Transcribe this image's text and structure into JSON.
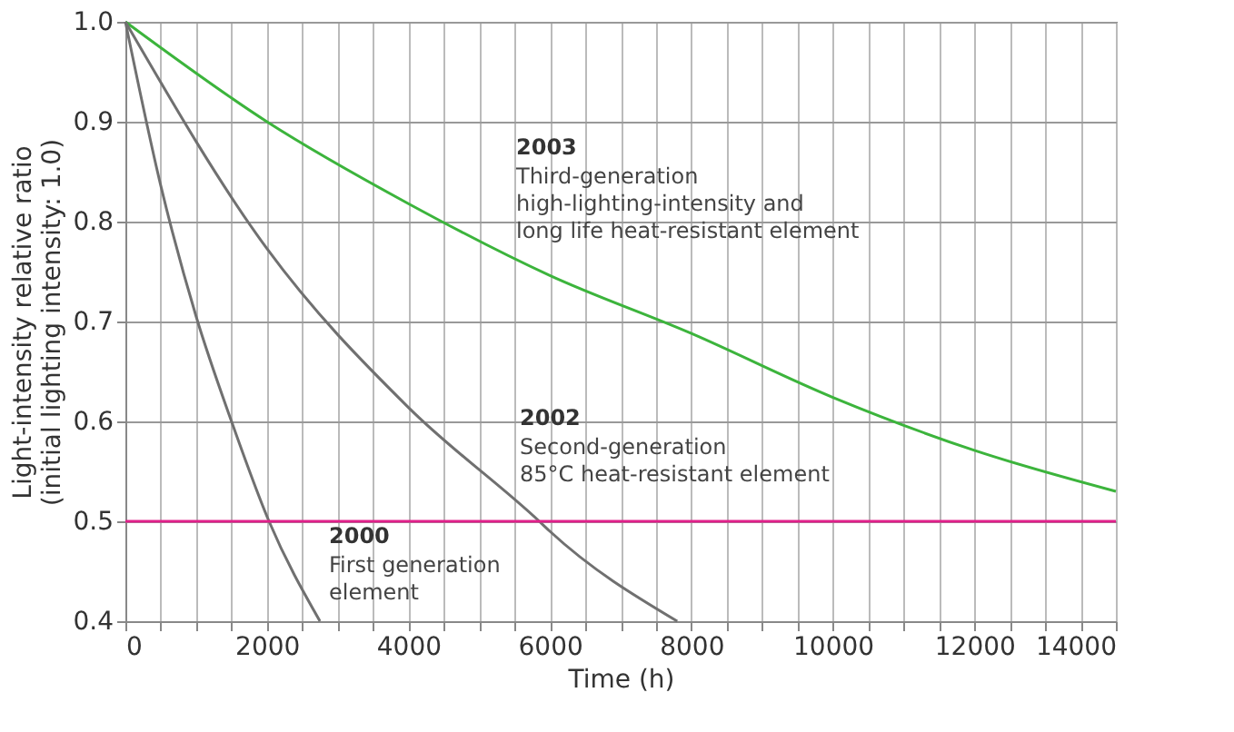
{
  "chart_data": {
    "type": "line",
    "xlabel": "Time (h)",
    "ylabel": "Light-intensity relative ratio\n(initial lighting intensity: 1.0)",
    "xlim": [
      0,
      14000
    ],
    "ylim": [
      0.4,
      1.0
    ],
    "xticks": [
      0,
      {
        "value": 500,
        "label": null
      },
      {
        "value": 1000,
        "label": null
      },
      {
        "value": 1500,
        "label": null
      },
      2000,
      {
        "value": 2500,
        "label": null
      },
      {
        "value": 3000,
        "label": null
      },
      {
        "value": 3500,
        "label": null
      },
      4000,
      {
        "value": 4500,
        "label": null
      },
      {
        "value": 5000,
        "label": null
      },
      {
        "value": 5500,
        "label": null
      },
      6000,
      {
        "value": 6500,
        "label": null
      },
      {
        "value": 7000,
        "label": null
      },
      {
        "value": 7500,
        "label": null
      },
      8000,
      {
        "value": 8500,
        "label": null
      },
      {
        "value": 9000,
        "label": null
      },
      {
        "value": 9500,
        "label": null
      },
      10000,
      {
        "value": 10500,
        "label": null
      },
      {
        "value": 11000,
        "label": null
      },
      {
        "value": 11500,
        "label": null
      },
      12000,
      {
        "value": 12500,
        "label": null
      },
      {
        "value": 13000,
        "label": null
      },
      {
        "value": 13500,
        "label": null
      },
      14000
    ],
    "yticks": [
      {
        "value": 0.4,
        "label": "0.4"
      },
      {
        "value": 0.5,
        "label": "0.5"
      },
      {
        "value": 0.6,
        "label": "0.6"
      },
      {
        "value": 0.7,
        "label": "0.7"
      },
      {
        "value": 0.8,
        "label": "0.8"
      },
      {
        "value": 0.9,
        "label": "0.9"
      },
      {
        "value": 1.0,
        "label": "1.0"
      }
    ],
    "grid": true,
    "series": [
      {
        "color": "#3cb43c",
        "x": [
          0,
          2000,
          4000,
          6000,
          8000,
          10000,
          12000,
          14000
        ],
        "values": [
          1.0,
          0.9,
          0.818,
          0.746,
          0.688,
          0.624,
          0.571,
          0.53
        ]
      },
      {
        "color": "#707070",
        "x": [
          0,
          2000,
          4000,
          5850,
          6000,
          7800
        ],
        "values": [
          1.0,
          0.773,
          0.614,
          0.5,
          0.49,
          0.4
        ]
      },
      {
        "color": "#707070",
        "x": [
          0,
          500,
          1000,
          1500,
          2030,
          2750
        ],
        "values": [
          1.0,
          0.836,
          0.705,
          0.6,
          0.5,
          0.4
        ]
      }
    ],
    "ref_lines": [
      {
        "axis": "y",
        "value": 0.5,
        "color": "#e0208a"
      }
    ],
    "annotations": [
      "2003",
      "Third-generation\nhigh-lighting-intensity and\nlong life heat-resistant element",
      "2002",
      "Second-generation\n85°C heat-resistant element",
      "2000",
      "First generation\nelement"
    ]
  }
}
